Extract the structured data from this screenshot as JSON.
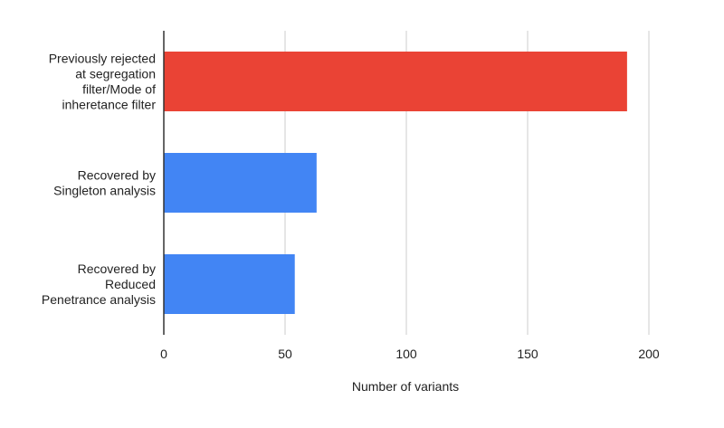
{
  "chart_data": {
    "type": "bar",
    "orientation": "horizontal",
    "categories": [
      [
        "Previously rejected",
        "at segregation",
        "filter/Mode of",
        "inheretance filter"
      ],
      [
        "Recovered by",
        "Singleton analysis"
      ],
      [
        "Recovered by",
        "Reduced",
        "Penetrance analysis"
      ]
    ],
    "values": [
      191,
      63,
      54
    ],
    "colors": [
      "#EA4335",
      "#4285F4",
      "#4285F4"
    ],
    "xlabel": "Number of variants",
    "ylabel": "",
    "title": "",
    "xlim": [
      0,
      200
    ],
    "xticks": [
      "0",
      "50",
      "100",
      "150",
      "200"
    ],
    "xtick_values": [
      0,
      50,
      100,
      150,
      200
    ],
    "grid": true,
    "legend": "none"
  }
}
